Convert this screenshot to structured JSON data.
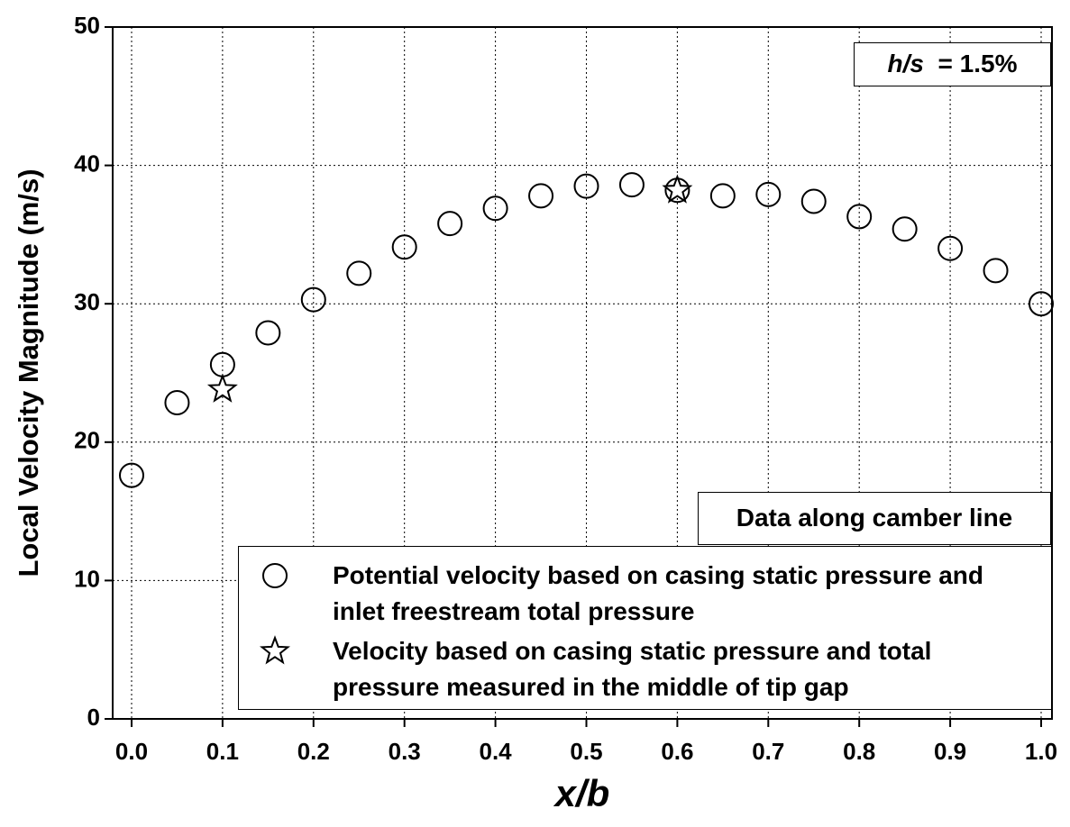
{
  "chart_data": {
    "type": "scatter",
    "x_label": "x/b",
    "y_label": "Local Velocity Magnitude (m/s)",
    "annotations": [
      "h/s",
      "= 1.5%",
      "Data along camber line"
    ],
    "xlim": [
      -0.0208,
      1.0119
    ],
    "ylim": [
      0,
      50
    ],
    "xticks": [
      {
        "value": 0,
        "label": "0.0"
      },
      0.1,
      0.2,
      0.3,
      0.4,
      0.5,
      0.6,
      0.7,
      0.8,
      0.9,
      {
        "value": 1,
        "label": "1.0"
      }
    ],
    "yticks": [
      0,
      10,
      20,
      30,
      40,
      50
    ],
    "grid": true,
    "legend_position": "lower right",
    "series": [
      {
        "name": "Potential velocity based on casing static pressure and inlet freestream total pressure",
        "color": "#000000",
        "marker": "circle",
        "x": [
          0,
          0.05,
          0.1,
          0.15,
          0.2,
          0.25,
          0.3,
          0.35,
          0.4,
          0.45,
          0.5,
          0.55,
          0.6,
          0.65,
          0.7,
          0.75,
          0.8,
          0.85,
          0.9,
          0.95,
          1.0
        ],
        "values": [
          17.6,
          22.85,
          25.6,
          27.9,
          30.3,
          32.2,
          34.1,
          35.8,
          36.9,
          37.8,
          38.5,
          38.6,
          38.2,
          37.8,
          37.9,
          37.4,
          36.3,
          35.4,
          34.0,
          32.4,
          30.0
        ]
      },
      {
        "name": "Velocity based on casing static pressure and total pressure measured in the middle of tip gap",
        "color": "#000000",
        "marker": "star",
        "x": [
          0.1,
          0.6
        ],
        "values": [
          23.8,
          38.2
        ]
      }
    ]
  }
}
